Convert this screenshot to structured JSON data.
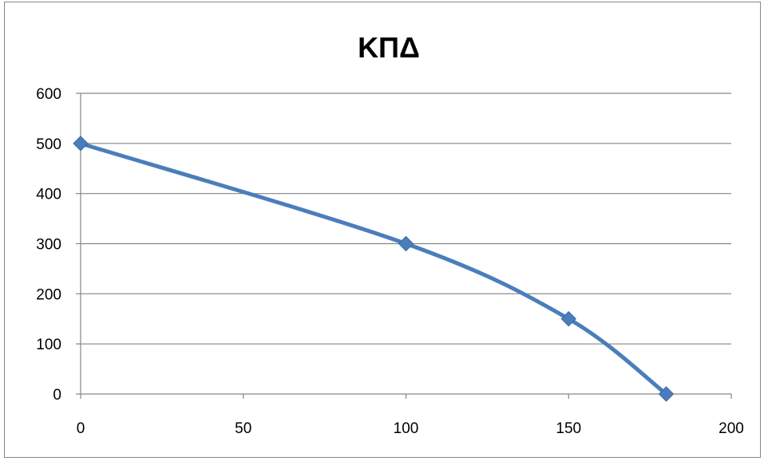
{
  "chart_data": {
    "type": "line",
    "title": "ΚΠΔ",
    "xlabel": "",
    "ylabel": "",
    "xlim": [
      0,
      200
    ],
    "ylim": [
      0,
      600
    ],
    "xticks": [
      0,
      50,
      100,
      150,
      200
    ],
    "yticks": [
      0,
      100,
      200,
      300,
      400,
      500,
      600
    ],
    "grid": "horizontal",
    "legend": "none",
    "smooth": true,
    "series": [
      {
        "x": [
          0,
          100,
          150,
          180
        ],
        "y": [
          500,
          300,
          150,
          0
        ],
        "color": "#4a7ebb",
        "marker": "diamond"
      }
    ]
  }
}
